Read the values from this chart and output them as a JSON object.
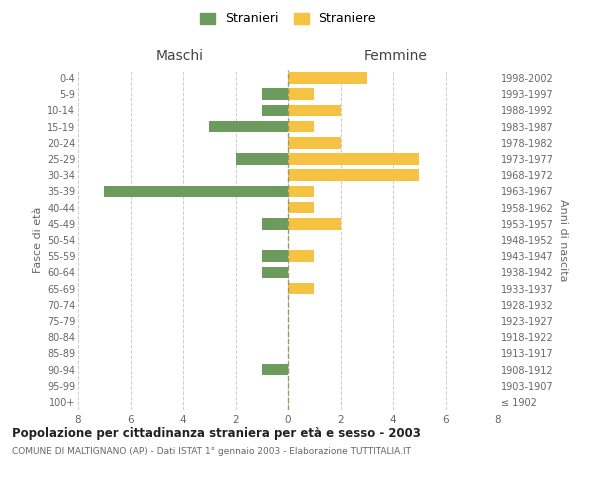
{
  "age_groups": [
    "100+",
    "95-99",
    "90-94",
    "85-89",
    "80-84",
    "75-79",
    "70-74",
    "65-69",
    "60-64",
    "55-59",
    "50-54",
    "45-49",
    "40-44",
    "35-39",
    "30-34",
    "25-29",
    "20-24",
    "15-19",
    "10-14",
    "5-9",
    "0-4"
  ],
  "birth_years": [
    "≤ 1902",
    "1903-1907",
    "1908-1912",
    "1913-1917",
    "1918-1922",
    "1923-1927",
    "1928-1932",
    "1933-1937",
    "1938-1942",
    "1943-1947",
    "1948-1952",
    "1953-1957",
    "1958-1962",
    "1963-1967",
    "1968-1972",
    "1973-1977",
    "1978-1982",
    "1983-1987",
    "1988-1992",
    "1993-1997",
    "1998-2002"
  ],
  "maschi": [
    0,
    0,
    1,
    0,
    0,
    0,
    0,
    0,
    1,
    1,
    0,
    1,
    0,
    7,
    0,
    2,
    0,
    3,
    1,
    1,
    0
  ],
  "femmine": [
    0,
    0,
    0,
    0,
    0,
    0,
    0,
    1,
    0,
    1,
    0,
    2,
    1,
    1,
    5,
    5,
    2,
    1,
    2,
    1,
    3
  ],
  "color_maschi": "#6d9b5e",
  "color_femmine": "#f5c242",
  "title": "Popolazione per cittadinanza straniera per età e sesso - 2003",
  "subtitle": "COMUNE DI MALTIGNANO (AP) - Dati ISTAT 1° gennaio 2003 - Elaborazione TUTTITALIA.IT",
  "xlabel_left": "Maschi",
  "xlabel_right": "Femmine",
  "ylabel_left": "Fasce di età",
  "ylabel_right": "Anni di nascita",
  "legend_maschi": "Stranieri",
  "legend_femmine": "Straniere",
  "xlim": 8,
  "background_color": "#ffffff",
  "grid_color": "#cccccc"
}
